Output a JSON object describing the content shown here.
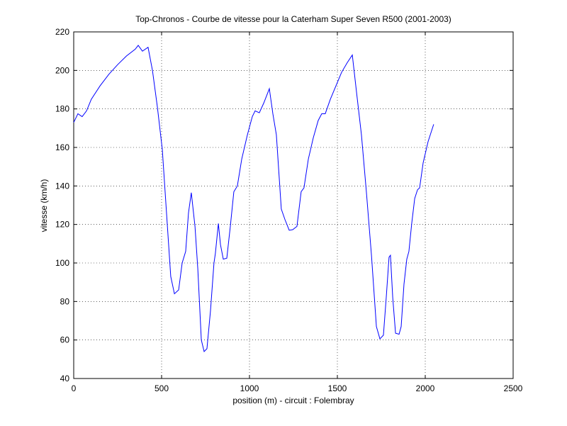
{
  "chart_data": {
    "type": "line",
    "title": "Top-Chronos - Courbe de vitesse pour la Caterham Super Seven R500 (2001-2003)",
    "x_label": "position (m) - circuit : Folembray",
    "y_label": "vitesse (km/h)",
    "xlim": [
      0,
      2500
    ],
    "xticks": [
      0,
      500,
      1000,
      1500,
      2000,
      2500
    ],
    "ylim": [
      40,
      220
    ],
    "yticks": [
      40,
      60,
      80,
      100,
      120,
      140,
      160,
      180,
      200,
      220
    ],
    "grid": true,
    "series": [
      {
        "color": "#0000ff",
        "x": [
          0,
          24,
          48,
          73,
          100,
          150,
          200,
          250,
          300,
          350,
          367,
          391,
          423,
          448,
          476,
          504,
          528,
          552,
          573,
          597,
          617,
          637,
          653,
          669,
          690,
          706,
          726,
          742,
          758,
          778,
          798,
          806,
          823,
          835,
          851,
          871,
          891,
          911,
          931,
          956,
          988,
          1016,
          1032,
          1056,
          1081,
          1113,
          1133,
          1153,
          1181,
          1202,
          1226,
          1246,
          1270,
          1294,
          1310,
          1335,
          1363,
          1391,
          1411,
          1431,
          1460,
          1492,
          1524,
          1556,
          1585,
          1609,
          1637,
          1665,
          1694,
          1722,
          1742,
          1762,
          1778,
          1794,
          1802,
          1815,
          1831,
          1851,
          1863,
          1879,
          1895,
          1907,
          1923,
          1940,
          1956,
          1968,
          1988,
          2016,
          2048
        ],
        "values": [
          173,
          177.5,
          176,
          179,
          185,
          192,
          198,
          203,
          207.5,
          211,
          213,
          210,
          212,
          200,
          181,
          159,
          126,
          93,
          84,
          86,
          100,
          106,
          126,
          136.5,
          119,
          97,
          60,
          54,
          55.5,
          75,
          100,
          105,
          120.5,
          109.5,
          102,
          102.5,
          119,
          137,
          140,
          154,
          166.5,
          176,
          179,
          178,
          183,
          190.5,
          177.5,
          166.5,
          128,
          122.5,
          117,
          117.3,
          119,
          137,
          139,
          154,
          165,
          174,
          177.5,
          177.5,
          185,
          192,
          199,
          204,
          208,
          188.7,
          166.5,
          137,
          104,
          67,
          60.6,
          62.5,
          82,
          103,
          104,
          82,
          63.5,
          63,
          67,
          89,
          102,
          106,
          120.5,
          133.5,
          138,
          139,
          152,
          163,
          172
        ]
      }
    ]
  }
}
